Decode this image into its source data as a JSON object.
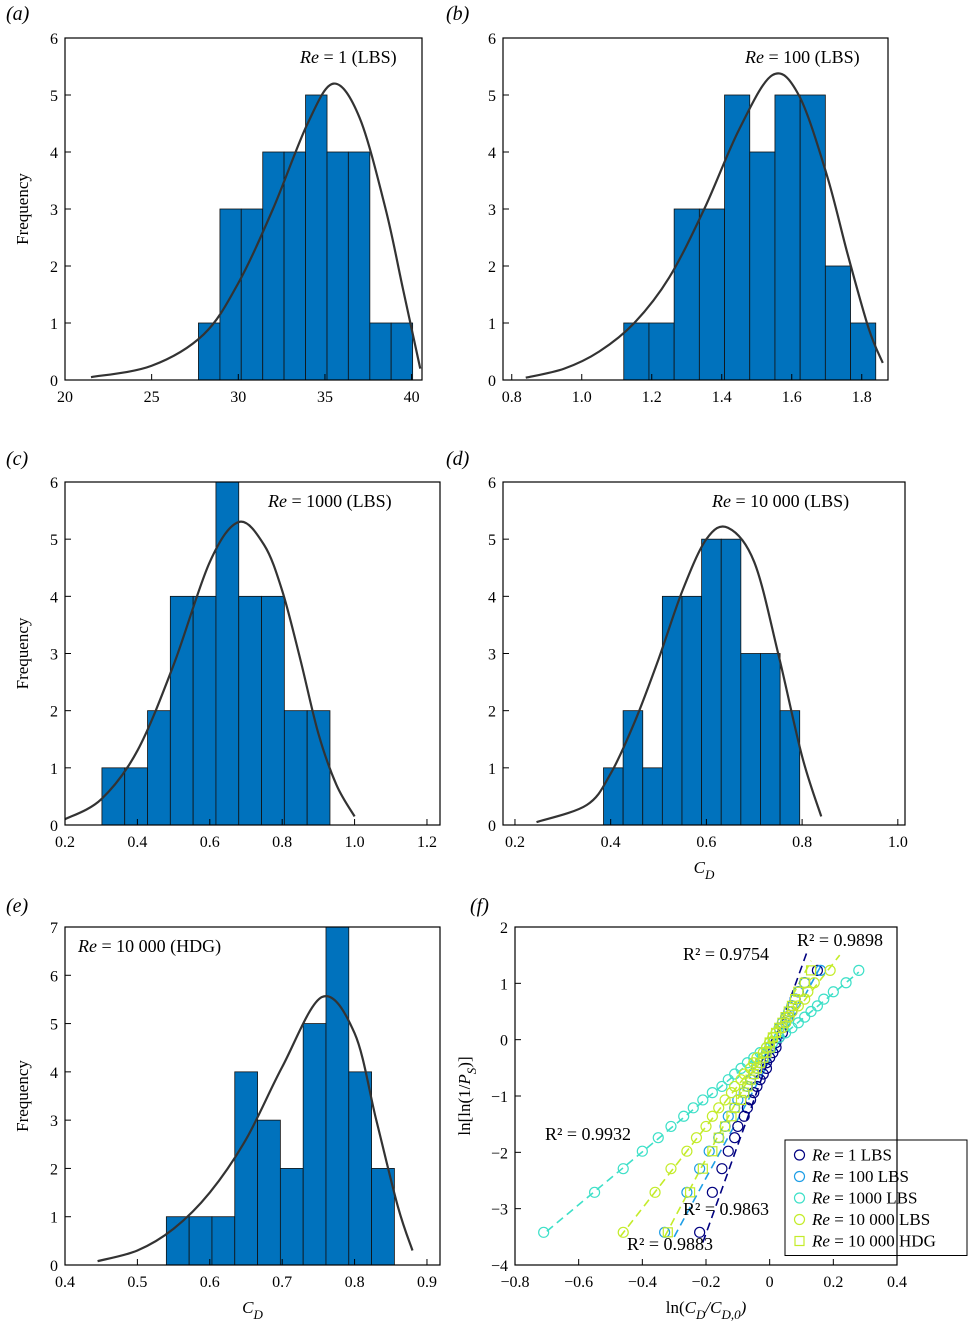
{
  "chart_data": [
    {
      "type": "histogram",
      "label": "(a)",
      "annotation": "Re = 1 (LBS)",
      "ylabel": "Frequency",
      "bins": [
        27.7,
        28.94,
        30.17,
        31.41,
        32.64,
        33.88,
        35.12,
        36.35,
        37.59,
        38.82,
        40.06
      ],
      "values": [
        1,
        3,
        3,
        4,
        4,
        5,
        4,
        4,
        1,
        1
      ],
      "color": "#0072bd",
      "fit": {
        "x": [
          21.5,
          25,
          28,
          30,
          32,
          34,
          35.5,
          37,
          38.5,
          39.5,
          40.5
        ],
        "y": [
          0.05,
          0.25,
          0.8,
          1.7,
          3.0,
          4.5,
          5.2,
          4.6,
          3.0,
          1.6,
          0.2
        ],
        "color": "#333333"
      },
      "xlim": [
        20,
        40.6
      ],
      "ylim": [
        0,
        6
      ],
      "xticks": [
        20,
        25,
        30,
        35,
        40
      ],
      "yticks": [
        0,
        1,
        2,
        3,
        4,
        5,
        6
      ]
    },
    {
      "type": "histogram",
      "label": "(b)",
      "annotation": "Re = 100 (LBS)",
      "bins": [
        1.12,
        1.192,
        1.264,
        1.336,
        1.408,
        1.48,
        1.552,
        1.624,
        1.696,
        1.768,
        1.84
      ],
      "values": [
        1,
        1,
        3,
        3,
        5,
        4,
        5,
        5,
        2,
        1
      ],
      "color": "#0072bd",
      "fit": {
        "x": [
          0.84,
          0.95,
          1.05,
          1.15,
          1.25,
          1.35,
          1.45,
          1.545,
          1.62,
          1.7,
          1.76,
          1.82,
          1.86
        ],
        "y": [
          0.04,
          0.2,
          0.5,
          1.0,
          1.8,
          3.0,
          4.4,
          5.35,
          5.0,
          3.6,
          2.2,
          0.9,
          0.3
        ],
        "color": "#333333"
      },
      "xlim": [
        0.775,
        1.875
      ],
      "ylim": [
        0,
        6
      ],
      "xticks": [
        0.8,
        {
          "value": 1,
          "label": "1.0"
        },
        1.2,
        1.4,
        1.6,
        1.8
      ],
      "yticks": [
        0,
        1,
        2,
        3,
        4,
        5,
        6
      ]
    },
    {
      "type": "histogram",
      "label": "(c)",
      "annotation": "Re = 1000 (LBS)",
      "ylabel": "Frequency",
      "bins": [
        0.302,
        0.365,
        0.428,
        0.491,
        0.554,
        0.617,
        0.68,
        0.743,
        0.806,
        0.869,
        0.932
      ],
      "values": [
        1,
        1,
        2,
        4,
        4,
        6,
        4,
        4,
        2,
        2
      ],
      "color": "#0072bd",
      "fit": {
        "x": [
          0.2,
          0.3,
          0.4,
          0.5,
          0.6,
          0.68,
          0.75,
          0.8,
          0.85,
          0.9,
          0.95,
          1.0
        ],
        "y": [
          0.1,
          0.45,
          1.3,
          2.8,
          4.6,
          5.3,
          4.9,
          4.1,
          2.9,
          1.6,
          0.7,
          0.15
        ],
        "color": "#333333"
      },
      "xlim": [
        0.2,
        1.236
      ],
      "ylim": [
        0,
        6
      ],
      "xticks": [
        0.2,
        0.4,
        0.6,
        0.8,
        {
          "value": 1,
          "label": "1.0"
        },
        1.2
      ],
      "yticks": [
        0,
        1,
        2,
        3,
        4,
        5,
        6
      ]
    },
    {
      "type": "histogram",
      "label": "(d)",
      "annotation": "Re = 10 000 (LBS)",
      "xlabel": {
        "parts": [
          "C",
          "D"
        ],
        "sub": [
          false,
          true
        ]
      },
      "bins": [
        0.385,
        0.426,
        0.467,
        0.508,
        0.549,
        0.59,
        0.631,
        0.672,
        0.713,
        0.754,
        0.795
      ],
      "values": [
        1,
        2,
        1,
        4,
        4,
        5,
        5,
        3,
        3,
        2
      ],
      "color": "#0072bd",
      "fit": {
        "x": [
          0.245,
          0.35,
          0.4,
          0.45,
          0.5,
          0.55,
          0.6,
          0.645,
          0.7,
          0.75,
          0.8,
          0.84
        ],
        "y": [
          0.05,
          0.35,
          0.9,
          1.8,
          2.9,
          4.1,
          5.0,
          5.2,
          4.6,
          3.0,
          1.2,
          0.15
        ],
        "color": "#333333"
      },
      "xlim": [
        0.175,
        1.015
      ],
      "ylim": [
        0,
        6
      ],
      "xticks": [
        0.2,
        0.4,
        0.6,
        0.8,
        {
          "value": 1,
          "label": "1.0"
        }
      ],
      "yticks": [
        0,
        1,
        2,
        3,
        4,
        5,
        6
      ]
    },
    {
      "type": "histogram",
      "label": "(e)",
      "annotation": "Re = 10 000 (HDG)",
      "ylabel": "Frequency",
      "xlabel": {
        "parts": [
          "C",
          "D"
        ],
        "sub": [
          false,
          true
        ]
      },
      "bins": [
        0.54,
        0.5715,
        0.603,
        0.6345,
        0.666,
        0.6975,
        0.729,
        0.7605,
        0.792,
        0.8235,
        0.855
      ],
      "values": [
        1,
        1,
        1,
        4,
        3,
        2,
        5,
        7,
        4,
        2
      ],
      "color": "#0072bd",
      "fit": {
        "x": [
          0.445,
          0.5,
          0.55,
          0.6,
          0.65,
          0.7,
          0.755,
          0.8,
          0.83,
          0.86,
          0.88
        ],
        "y": [
          0.08,
          0.3,
          0.75,
          1.5,
          2.6,
          4.1,
          5.55,
          4.8,
          3.0,
          1.2,
          0.3
        ],
        "color": "#333333"
      },
      "xlim": [
        0.4,
        0.918
      ],
      "ylim": [
        0,
        7
      ],
      "xticks": [
        0.4,
        0.5,
        0.6,
        0.7,
        0.8,
        0.9
      ],
      "yticks": [
        0,
        1,
        2,
        3,
        4,
        5,
        6,
        7
      ]
    },
    {
      "type": "scatter",
      "label": "(f)",
      "xlabel": {
        "parts": [
          "ln(",
          "C",
          "D",
          "/",
          "C",
          "D,0",
          ")"
        ],
        "sub": [
          false,
          false,
          true,
          false,
          false,
          true,
          false
        ]
      },
      "ylabel": {
        "parts": [
          "ln[ln(1/",
          "P",
          "S",
          ")]"
        ],
        "sub": [
          false,
          false,
          true,
          false
        ]
      },
      "legend": "lower right",
      "series": [
        {
          "name": "Re = 1 LBS",
          "color": "#000080",
          "marker": "circle",
          "x": [
            -0.22,
            -0.18,
            -0.15,
            -0.13,
            -0.11,
            -0.1,
            -0.08,
            -0.07,
            -0.06,
            -0.05,
            -0.04,
            -0.03,
            -0.02,
            -0.01,
            -0.01,
            0,
            0.01,
            0.02,
            0.02,
            0.03,
            0.04,
            0.04,
            0.05,
            0.06,
            0.07,
            0.07,
            0.08,
            0.09,
            0.11,
            0.15
          ],
          "values": [
            -3.42,
            -2.71,
            -2.29,
            -1.98,
            -1.74,
            -1.54,
            -1.36,
            -1.21,
            -1.07,
            -0.94,
            -0.83,
            -0.71,
            -0.61,
            -0.51,
            -0.41,
            -0.32,
            -0.23,
            -0.14,
            -0.05,
            0.04,
            0.12,
            0.21,
            0.3,
            0.4,
            0.5,
            0.6,
            0.72,
            0.85,
            1.01,
            1.23
          ],
          "fit_x": [
            -0.21,
            0.12
          ],
          "fit_y": [
            -3.6,
            1.6
          ]
        },
        {
          "name": "Re = 100 LBS",
          "color": "#1e9ee6",
          "marker": "circle",
          "x": [
            -0.33,
            -0.26,
            -0.22,
            -0.19,
            -0.16,
            -0.14,
            -0.13,
            -0.11,
            -0.1,
            -0.08,
            -0.07,
            -0.06,
            -0.05,
            -0.04,
            -0.03,
            -0.02,
            -0.01,
            0,
            0,
            0.01,
            0.02,
            0.03,
            0.04,
            0.05,
            0.06,
            0.07,
            0.08,
            0.09,
            0.11,
            0.16
          ],
          "values": [
            -3.42,
            -2.71,
            -2.29,
            -1.98,
            -1.74,
            -1.54,
            -1.36,
            -1.21,
            -1.07,
            -0.94,
            -0.83,
            -0.71,
            -0.61,
            -0.51,
            -0.41,
            -0.32,
            -0.23,
            -0.14,
            -0.05,
            0.04,
            0.12,
            0.21,
            0.3,
            0.4,
            0.5,
            0.6,
            0.72,
            0.85,
            1.01,
            1.23
          ],
          "fit_x": [
            -0.3,
            0.16
          ],
          "fit_y": [
            -3.5,
            1.3
          ]
        },
        {
          "name": "Re = 1000 LBS",
          "color": "#3ee0c8",
          "marker": "circle",
          "x": [
            -0.71,
            -0.55,
            -0.46,
            -0.4,
            -0.35,
            -0.31,
            -0.27,
            -0.24,
            -0.21,
            -0.18,
            -0.15,
            -0.13,
            -0.11,
            -0.09,
            -0.07,
            -0.05,
            -0.03,
            -0.01,
            0.01,
            0.03,
            0.05,
            0.07,
            0.09,
            0.11,
            0.13,
            0.15,
            0.17,
            0.2,
            0.24,
            0.28
          ],
          "values": [
            -3.42,
            -2.71,
            -2.29,
            -1.98,
            -1.74,
            -1.54,
            -1.36,
            -1.21,
            -1.07,
            -0.94,
            -0.83,
            -0.71,
            -0.61,
            -0.51,
            -0.41,
            -0.32,
            -0.23,
            -0.14,
            -0.05,
            0.04,
            0.12,
            0.21,
            0.3,
            0.4,
            0.5,
            0.6,
            0.72,
            0.85,
            1.01,
            1.23
          ],
          "fit_x": [
            -0.7,
            0.28
          ],
          "fit_y": [
            -3.4,
            1.2
          ]
        },
        {
          "name": "Re = 10 000 LBS",
          "color": "#c4ec2a",
          "marker": "circle",
          "x": [
            -0.46,
            -0.36,
            -0.31,
            -0.26,
            -0.23,
            -0.2,
            -0.18,
            -0.16,
            -0.14,
            -0.12,
            -0.11,
            -0.09,
            -0.08,
            -0.06,
            -0.05,
            -0.04,
            -0.02,
            -0.01,
            0,
            0.01,
            0.02,
            0.04,
            0.05,
            0.06,
            0.07,
            0.09,
            0.11,
            0.12,
            0.14,
            0.19
          ],
          "values": [
            -3.42,
            -2.71,
            -2.29,
            -1.98,
            -1.74,
            -1.54,
            -1.36,
            -1.21,
            -1.07,
            -0.94,
            -0.83,
            -0.71,
            -0.61,
            -0.51,
            -0.41,
            -0.32,
            -0.23,
            -0.14,
            -0.05,
            0.04,
            0.12,
            0.21,
            0.3,
            0.4,
            0.5,
            0.6,
            0.72,
            0.85,
            1.01,
            1.23
          ],
          "fit_x": [
            -0.47,
            0.22
          ],
          "fit_y": [
            -3.5,
            1.5
          ]
        },
        {
          "name": "Re = 10 000 HDG",
          "color": "#c4ec2a",
          "marker": "square",
          "x": [
            -0.32,
            -0.25,
            -0.21,
            -0.18,
            -0.16,
            -0.14,
            -0.12,
            -0.11,
            -0.09,
            -0.08,
            -0.07,
            -0.06,
            -0.05,
            -0.04,
            -0.03,
            -0.02,
            -0.01,
            0,
            0,
            0.01,
            0.02,
            0.03,
            0.04,
            0.05,
            0.06,
            0.07,
            0.08,
            0.09,
            0.11,
            0.13
          ],
          "values": [
            -3.42,
            -2.71,
            -2.29,
            -1.98,
            -1.74,
            -1.54,
            -1.36,
            -1.21,
            -1.07,
            -0.94,
            -0.83,
            -0.71,
            -0.61,
            -0.51,
            -0.41,
            -0.32,
            -0.23,
            -0.14,
            -0.05,
            0.04,
            0.12,
            0.21,
            0.3,
            0.4,
            0.5,
            0.6,
            0.72,
            0.85,
            1.01,
            1.23
          ],
          "fit_x": [
            -0.33,
            0.13
          ],
          "fit_y": [
            -3.5,
            1.4
          ]
        }
      ],
      "annotations": [
        {
          "text": "R² = 0.9754",
          "color": "#777777"
        },
        {
          "text": "R² = 0.9898",
          "color": "#b8e020"
        },
        {
          "text": "R² = 0.9932",
          "color": "#3ee0c8"
        },
        {
          "text": "R² = 0.9863",
          "color": "#b8e020"
        },
        {
          "text": "R² = 0.9883",
          "color": "#1e9ee6"
        }
      ],
      "xlim": [
        -0.8,
        0.4
      ],
      "ylim": [
        -4,
        2
      ],
      "xticks": [
        {
          "value": -0.8,
          "label": "−0.8"
        },
        {
          "value": -0.6,
          "label": "−0.6"
        },
        {
          "value": -0.4,
          "label": "−0.4"
        },
        {
          "value": -0.2,
          "label": "−0.2"
        },
        0,
        0.2,
        0.4
      ],
      "yticks": [
        {
          "value": -4,
          "label": "−4"
        },
        {
          "value": -3,
          "label": "−3"
        },
        {
          "value": -2,
          "label": "−2"
        },
        {
          "value": -1,
          "label": "−1"
        },
        0,
        1,
        2
      ]
    }
  ]
}
